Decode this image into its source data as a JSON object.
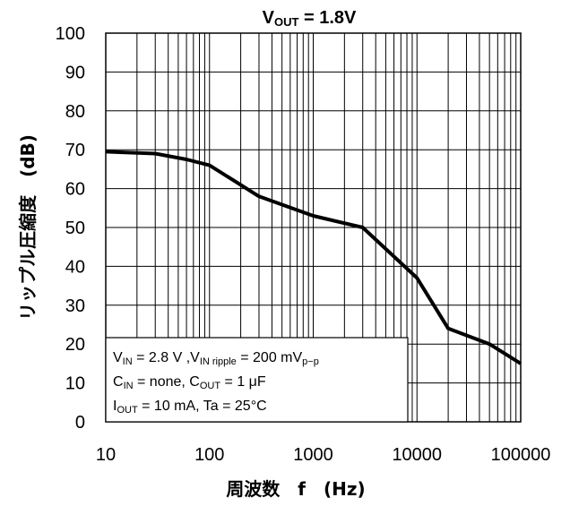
{
  "chart_data": {
    "type": "line",
    "title_main": "V",
    "title_sub": "OUT",
    "title_rest": " = 1.8V",
    "xlabel": "周波数　f　(Hz)",
    "ylabel": "リップル圧縮度　(dB)",
    "x_scale": "log",
    "xlim": [
      10,
      100000
    ],
    "ylim": [
      0,
      100
    ],
    "x_ticks": [
      "10",
      "100",
      "1000",
      "10000",
      "100000"
    ],
    "y_ticks": [
      "0",
      "10",
      "20",
      "30",
      "40",
      "50",
      "60",
      "70",
      "80",
      "90",
      "100"
    ],
    "grid": true,
    "series": [
      {
        "x": [
          10,
          30,
          60,
          100,
          300,
          1000,
          3000,
          10000,
          20000,
          50000,
          100000
        ],
        "y": [
          69.5,
          69,
          67.5,
          66,
          58,
          53,
          50,
          37,
          24,
          20,
          15
        ]
      }
    ],
    "conditions": {
      "line1": {
        "a": "V",
        "a_sub": "IN",
        "b": " = 2.8 V ,V",
        "b_sub": "IN ripple",
        "c": " = 200 mV",
        "c_sub": "p−p"
      },
      "line2": {
        "a": "C",
        "a_sub": "IN",
        "b": " = none, C",
        "b_sub": "OUT",
        "c": " = 1 μF"
      },
      "line3": {
        "a": "I",
        "a_sub": "OUT",
        "b": " = 10 mA, Ta = 25°C"
      }
    },
    "line_color": "#000000",
    "grid_color": "#000000"
  }
}
